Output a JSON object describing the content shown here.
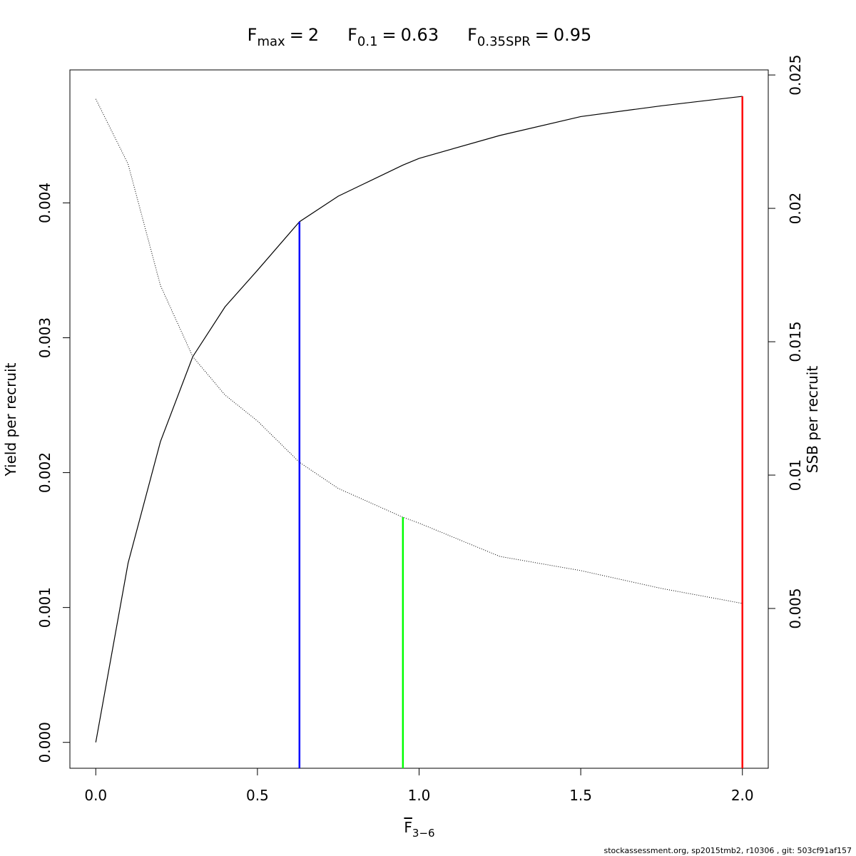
{
  "chart_data": {
    "type": "line",
    "reference_points": [
      {
        "name": "F",
        "subscript": "max",
        "value": 2,
        "color": "#ff0000",
        "axis": "y"
      },
      {
        "name": "F",
        "subscript": "0.1",
        "value": 0.63,
        "color": "#0000ff",
        "axis": "y"
      },
      {
        "name": "F",
        "subscript": "0.35SPR",
        "value": 0.95,
        "color": "#00ff00",
        "axis": "y2"
      }
    ],
    "title_separator": "=",
    "xlabel": "F",
    "xlabel_subscript": "3−6",
    "ylabel": "Yield per recruit",
    "y2label": "SSB per recruit",
    "x": [
      0,
      0.1,
      0.2,
      0.3,
      0.4,
      0.5,
      0.63,
      0.75,
      0.95,
      1,
      1.25,
      1.5,
      1.75,
      2
    ],
    "series": [
      {
        "color": "#000000",
        "dash": "solid",
        "axis": "y",
        "values": [
          0,
          0.00133,
          0.00223,
          0.00286,
          0.00323,
          0.0035,
          0.00386,
          0.00405,
          0.00428,
          0.00433,
          0.0045,
          0.00464,
          0.00472,
          0.00479
        ]
      },
      {
        "color": "#000000",
        "dash": "dotted",
        "axis": "y2",
        "values": [
          0.0241,
          0.02166,
          0.01711,
          0.01444,
          0.013,
          0.01203,
          0.01048,
          0.0095,
          0.00842,
          0.0082,
          0.00695,
          0.00642,
          0.00575,
          0.00519
        ]
      }
    ],
    "xlim": [
      -0.08,
      2.08
    ],
    "xticks": [
      {
        "value": 0,
        "label": "0.0"
      },
      0.5,
      {
        "value": 1,
        "label": "1.0"
      },
      1.5,
      {
        "value": 2,
        "label": "2.0"
      }
    ],
    "ylim": [
      -0.000192,
      0.004986
    ],
    "yticks": [
      {
        "value": 0,
        "label": "0.000"
      },
      {
        "value": 0.001,
        "label": "0.001"
      },
      {
        "value": 0.002,
        "label": "0.002"
      },
      {
        "value": 0.003,
        "label": "0.003"
      },
      {
        "value": 0.004,
        "label": "0.004"
      }
    ],
    "y2lim": [
      -0.00099,
      0.02519
    ],
    "y2ticks": [
      0.005,
      0.01,
      0.015,
      0.02,
      0.025
    ],
    "footer": "stockassessment.org, sp2015tmb2, r10306 , git: 503cf91af157"
  }
}
